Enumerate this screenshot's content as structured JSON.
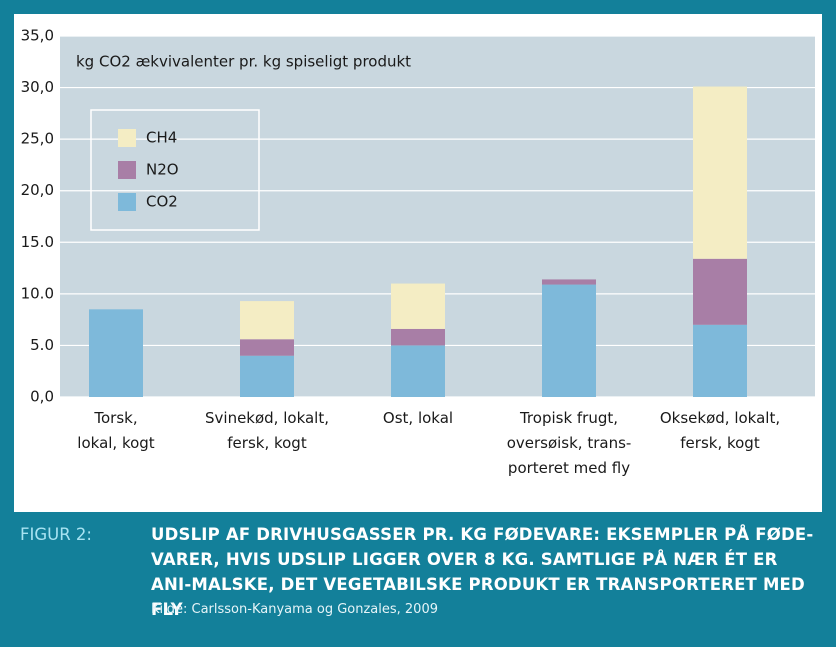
{
  "chart_data": {
    "type": "stacked_bar",
    "title": "kg CO2 ækvivalenter pr. kg spiseligt produkt",
    "categories": [
      "Torsk,\nlokal, kogt",
      "Svinekød, lokalt,\nfersk, kogt",
      "Ost, lokal",
      "Tropisk frugt,\noversøisk, trans-\nporteret med fly",
      "Oksekød, lokalt,\nfersk, kogt"
    ],
    "series": [
      {
        "name": "CO2",
        "color": "#7eb9da",
        "values": [
          8.5,
          4.0,
          5.0,
          10.9,
          7.0
        ]
      },
      {
        "name": "N2O",
        "color": "#a87ea6",
        "values": [
          0,
          1.6,
          1.6,
          0.5,
          6.4
        ]
      },
      {
        "name": "CH4",
        "color": "#f4edc4",
        "values": [
          0,
          3.7,
          4.4,
          0,
          16.7
        ]
      }
    ],
    "ylim": [
      0,
      35
    ],
    "yticks": [
      {
        "value": 0,
        "label": "0,0"
      },
      {
        "value": 5,
        "label": "5.0"
      },
      {
        "value": 10,
        "label": "10.0"
      },
      {
        "value": 15,
        "label": "15.0"
      },
      {
        "value": 20,
        "label": "20,0"
      },
      {
        "value": 25,
        "label": "25,0"
      },
      {
        "value": 30,
        "label": "30,0"
      },
      {
        "value": 35,
        "label": "35,0"
      }
    ],
    "grid": true
  },
  "caption": {
    "label": "FIGUR 2:",
    "text": "UDSLIP AF DRIVHUSGASSER PR. KG FØDEVARE: EKSEMPLER PÅ FØDE-VARER, HVIS UDSLIP LIGGER OVER 8 KG. SAMTLIGE PÅ NÆR ÉT ER ANI-MALSKE, DET VEGETABILSKE PRODUKT ER TRANSPORTERET MED FLY",
    "source": "Kilde: Carlsson-Kanyama og Gonzales, 2009"
  }
}
